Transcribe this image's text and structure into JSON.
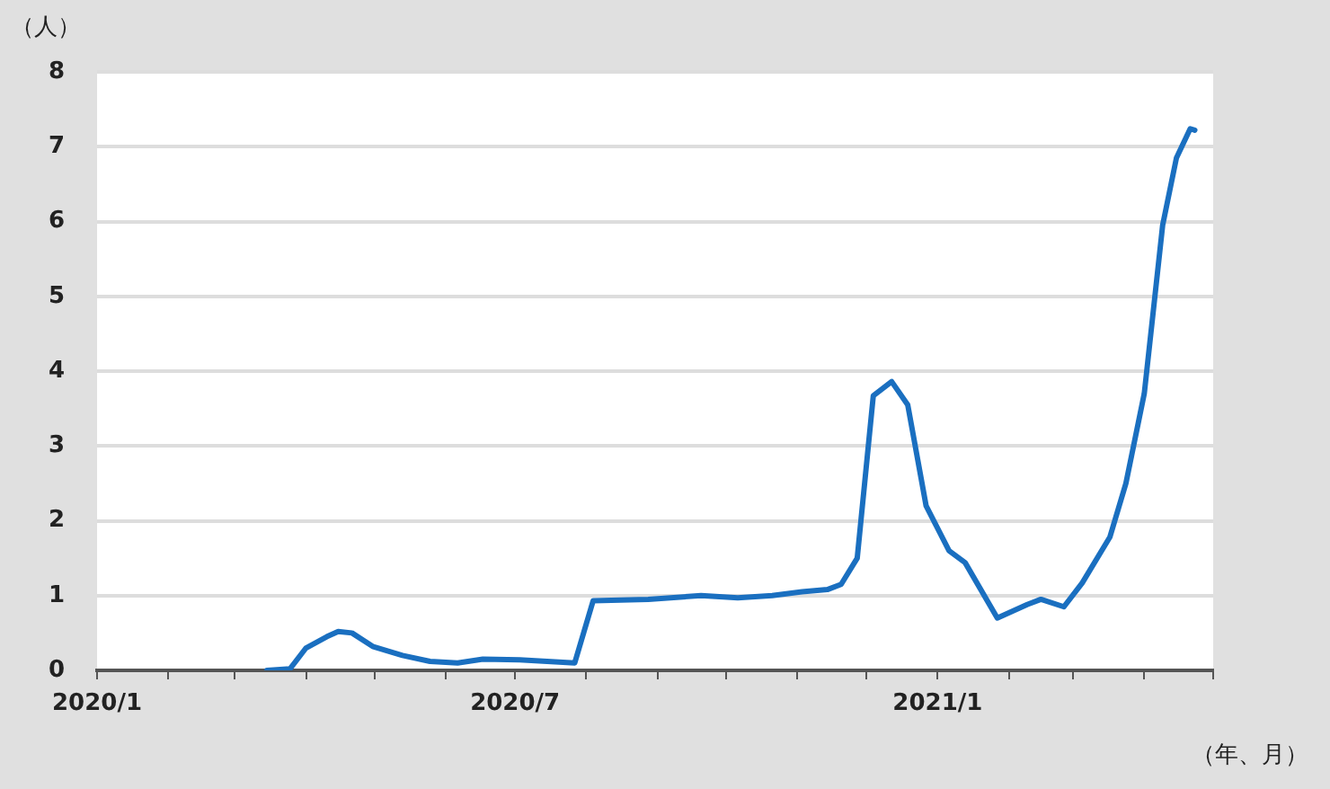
{
  "chart_data": {
    "type": "line",
    "ylabel": "（人）",
    "xlabel": "（年、月）",
    "x": [
      "2020-03-15",
      "2020-03-25",
      "2020-04-01",
      "2020-04-10",
      "2020-04-15",
      "2020-04-21",
      "2020-04-30",
      "2020-05-13",
      "2020-05-25",
      "2020-06-06",
      "2020-06-17",
      "2020-07-03",
      "2020-07-15",
      "2020-07-27",
      "2020-08-04",
      "2020-08-28",
      "2020-09-20",
      "2020-10-06",
      "2020-10-21",
      "2020-11-03",
      "2020-11-14",
      "2020-11-20",
      "2020-11-27",
      "2020-12-04",
      "2020-12-12",
      "2020-12-19",
      "2020-12-27",
      "2021-01-06",
      "2021-01-13",
      "2021-01-27",
      "2021-02-09",
      "2021-02-15",
      "2021-02-25",
      "2021-03-05",
      "2021-03-17",
      "2021-03-24",
      "2021-04-01",
      "2021-04-09",
      "2021-04-15",
      "2021-04-21",
      "2021-04-23"
    ],
    "series": [
      {
        "color": "#1a6fc0",
        "values": [
          0,
          0.02,
          0.3,
          0.45,
          0.52,
          0.5,
          0.32,
          0.2,
          0.12,
          0.1,
          0.15,
          0.14,
          0.12,
          0.1,
          0.93,
          0.95,
          1.0,
          0.97,
          1.0,
          1.05,
          1.08,
          1.15,
          1.5,
          3.67,
          3.86,
          3.55,
          2.2,
          1.6,
          1.44,
          0.7,
          0.88,
          0.95,
          0.85,
          1.17,
          1.78,
          2.5,
          3.7,
          5.95,
          6.85,
          7.24,
          7.22
        ]
      }
    ],
    "xlim": [
      "2020-01",
      "2021-05"
    ],
    "xticks": [
      {
        "value": "2020-01",
        "label": "2020/1"
      },
      {
        "value": "2020-02",
        "label": null
      },
      {
        "value": "2020-03",
        "label": null
      },
      {
        "value": "2020-04",
        "label": null
      },
      {
        "value": "2020-05",
        "label": null
      },
      {
        "value": "2020-06",
        "label": null
      },
      {
        "value": "2020-07",
        "label": "2020/7"
      },
      {
        "value": "2020-08",
        "label": null
      },
      {
        "value": "2020-09",
        "label": null
      },
      {
        "value": "2020-10",
        "label": null
      },
      {
        "value": "2020-11",
        "label": null
      },
      {
        "value": "2020-12",
        "label": null
      },
      {
        "value": "2021-01",
        "label": "2021/1"
      },
      {
        "value": "2021-02",
        "label": null
      },
      {
        "value": "2021-03",
        "label": null
      },
      {
        "value": "2021-04",
        "label": null
      },
      {
        "value": "2021-05",
        "label": null
      }
    ],
    "ylim": [
      0,
      8
    ],
    "yticks": [
      0,
      1,
      2,
      3,
      4,
      5,
      6,
      7,
      8
    ],
    "grid": "y",
    "legend": false,
    "marker": "none",
    "line_style": "solid"
  }
}
